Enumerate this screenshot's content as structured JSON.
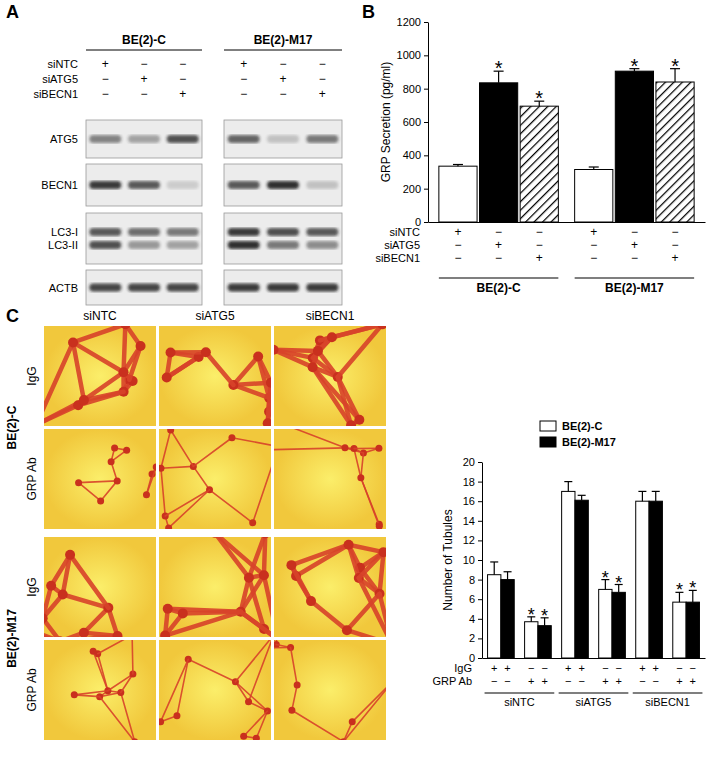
{
  "panel_a": {
    "label": "A",
    "cell_lines": [
      "BE(2)-C",
      "BE(2)-M17"
    ],
    "conditions": [
      {
        "label": "siNTC",
        "signs": [
          "+",
          "−",
          "−",
          "+",
          "−",
          "−"
        ]
      },
      {
        "label": "siATG5",
        "signs": [
          "−",
          "+",
          "−",
          "−",
          "+",
          "−"
        ]
      },
      {
        "label": "siBECN1",
        "signs": [
          "−",
          "−",
          "+",
          "−",
          "−",
          "+"
        ]
      }
    ],
    "blots": [
      {
        "bands": [
          {
            "label": "ATG5",
            "intensity": [
              0.5,
              0.35,
              0.75,
              0.65,
              0.2,
              0.55
            ]
          }
        ]
      },
      {
        "bands": [
          {
            "label": "BECN1",
            "intensity": [
              0.85,
              0.7,
              0.15,
              0.7,
              0.9,
              0.2
            ]
          }
        ]
      },
      {
        "bands": [
          {
            "label": "LC3-I",
            "intensity": [
              0.7,
              0.6,
              0.55,
              0.85,
              0.75,
              0.7
            ]
          },
          {
            "label": "LC3-II",
            "intensity": [
              0.75,
              0.4,
              0.35,
              0.9,
              0.55,
              0.45
            ]
          }
        ]
      },
      {
        "bands": [
          {
            "label": "ACTB",
            "intensity": [
              0.8,
              0.8,
              0.8,
              0.85,
              0.85,
              0.85
            ]
          }
        ]
      }
    ]
  },
  "panel_c_images": {
    "label": "C",
    "columns": [
      "siNTC",
      "siATG5",
      "siBECN1"
    ],
    "rows": [
      {
        "cell_line": "BE(2)-C",
        "antibodies": [
          "IgG",
          "GRP Ab"
        ]
      },
      {
        "cell_line": "BE(2)-M17",
        "antibodies": [
          "IgG",
          "GRP Ab"
        ]
      }
    ]
  },
  "chart_data": [
    {
      "type": "bar",
      "panel_label": "B",
      "y_label": "GRP Secretion (pg/ml)",
      "categories": [
        "BE(2)-C",
        "BE(2)-M17"
      ],
      "series": [
        {
          "color": "#ffffff",
          "values": [
            335,
            315
          ],
          "errors": [
            10,
            15
          ],
          "significance": [
            null,
            null
          ]
        },
        {
          "color": "#000000",
          "values": [
            835,
            905
          ],
          "errors": [
            70,
            15
          ],
          "significance": [
            "*",
            "*"
          ]
        },
        {
          "color": "#000000",
          "values": [
            695,
            840
          ],
          "errors": [
            30,
            80
          ],
          "significance": [
            "*",
            "*"
          ]
        }
      ],
      "condition_table": [
        {
          "label": "siNTC",
          "signs": [
            "+",
            "−",
            "−",
            "+",
            "−",
            "−"
          ]
        },
        {
          "label": "siATG5",
          "signs": [
            "−",
            "+",
            "−",
            "−",
            "+",
            "−"
          ]
        },
        {
          "label": "siBECN1",
          "signs": [
            "−",
            "−",
            "+",
            "−",
            "−",
            "+"
          ]
        }
      ],
      "ylim": [
        0,
        1200
      ],
      "yticks": [
        0,
        200,
        400,
        600,
        800,
        1000,
        1200
      ]
    },
    {
      "type": "bar",
      "y_label": "Number of Tubules",
      "categories": [
        null,
        null,
        null,
        null,
        null,
        null
      ],
      "groups": [
        "siNTC",
        "siATG5",
        "siBECN1"
      ],
      "series": [
        {
          "name": "BE(2)-C",
          "color": "#ffffff",
          "values": [
            8.5,
            3.7,
            17,
            7,
            16,
            5.7
          ],
          "errors": [
            1.3,
            0.5,
            1,
            1,
            1,
            1
          ],
          "significance": [
            null,
            "*",
            null,
            "*",
            null,
            "*"
          ]
        },
        {
          "name": "BE(2)-M17",
          "color": "#000000",
          "values": [
            8,
            3.3,
            16.1,
            6.7,
            16,
            5.7
          ],
          "errors": [
            0.8,
            0.8,
            0.5,
            0.8,
            1,
            1.2
          ],
          "significance": [
            null,
            "*",
            null,
            "*",
            null,
            "*"
          ]
        }
      ],
      "legend": "top",
      "condition_table": [
        {
          "label": "IgG",
          "signs": [
            "+",
            "+",
            "−",
            "−",
            "+",
            "+",
            "−",
            "−",
            "+",
            "+",
            "−",
            "−"
          ]
        },
        {
          "label": "GRP Ab",
          "signs": [
            "−",
            "−",
            "+",
            "+",
            "−",
            "−",
            "+",
            "+",
            "−",
            "−",
            "+",
            "+"
          ]
        }
      ],
      "ylim": [
        0,
        20
      ],
      "yticks": [
        0,
        2,
        4,
        6,
        8,
        10,
        12,
        14,
        16,
        18,
        20
      ]
    }
  ]
}
